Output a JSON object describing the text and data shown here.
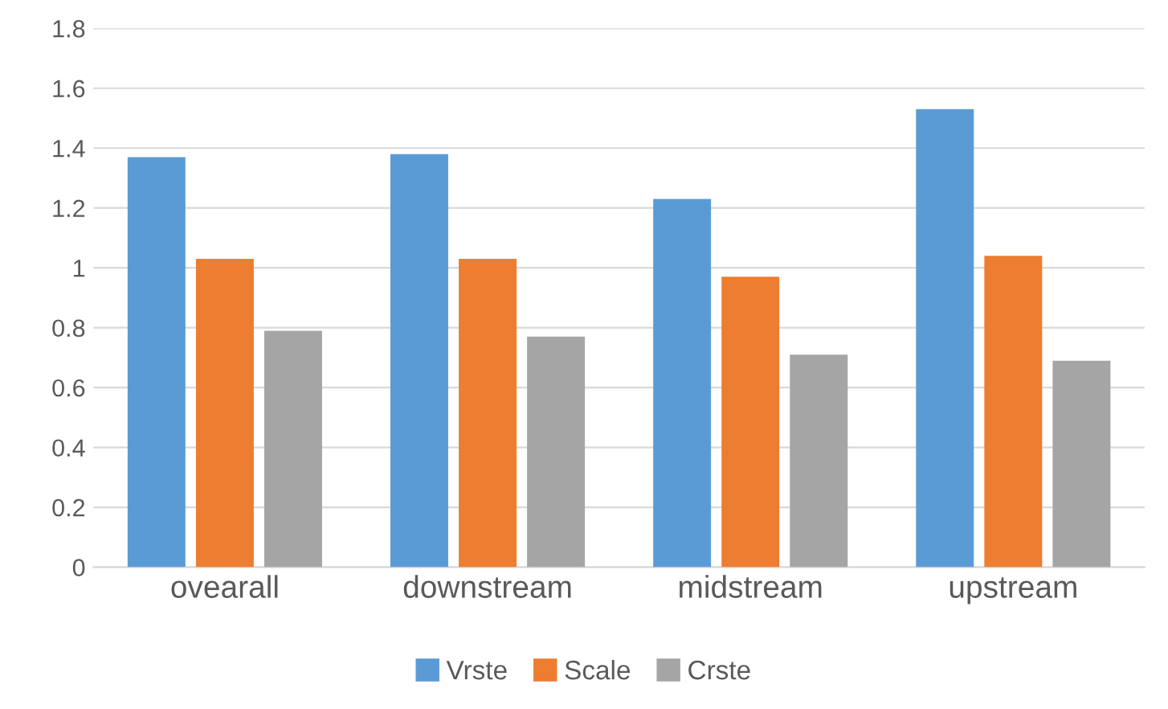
{
  "chart_data": {
    "type": "bar",
    "categories": [
      "ovearall",
      "downstream",
      "midstream",
      "upstream"
    ],
    "series": [
      {
        "name": "Vrste",
        "color": "#5b9bd5",
        "values": [
          1.37,
          1.38,
          1.23,
          1.53
        ]
      },
      {
        "name": "Scale",
        "color": "#ed7d31",
        "values": [
          1.03,
          1.03,
          0.97,
          1.04
        ]
      },
      {
        "name": "Crste",
        "color": "#a5a5a5",
        "values": [
          0.79,
          0.77,
          0.71,
          0.69
        ]
      }
    ],
    "ylim": [
      0,
      1.8
    ],
    "yticks": [
      0,
      {
        "value": 0.2,
        "label": "0.2"
      },
      {
        "value": 0.4,
        "label": "0.4"
      },
      {
        "value": 0.6,
        "label": "0.6"
      },
      {
        "value": 0.8,
        "label": "0.8"
      },
      1,
      {
        "value": 1.2,
        "label": "1.2"
      },
      {
        "value": 1.4,
        "label": "1.4"
      },
      {
        "value": 1.6,
        "label": "1.6"
      },
      {
        "value": 1.8,
        "label": "1.8"
      }
    ],
    "grid": "y",
    "legend": "bottom"
  }
}
